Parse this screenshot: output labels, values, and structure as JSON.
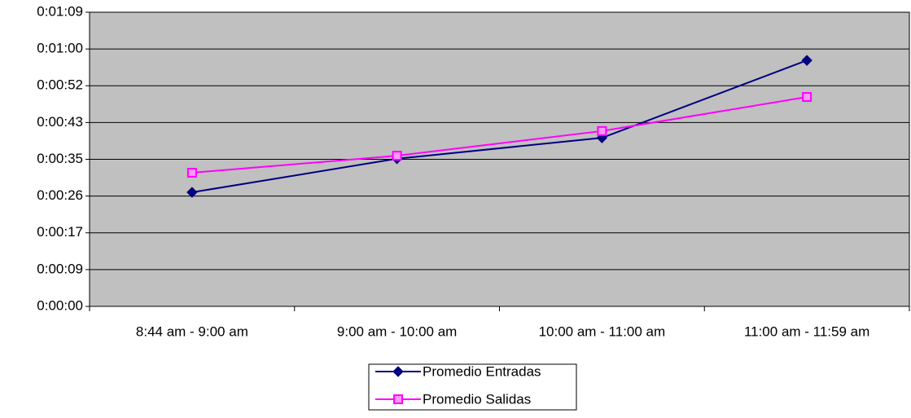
{
  "chart_data": {
    "type": "line",
    "categories": [
      "8:44 am - 9:00 am",
      "9:00 am - 10:00 am",
      "10:00 am - 11:00 am",
      "11:00 am - 11:59 am"
    ],
    "series": [
      {
        "name": "Promedio Entradas",
        "color": "#000080",
        "marker": "diamond",
        "values": [
          26.8,
          34.7,
          39.6,
          57.8
        ]
      },
      {
        "name": "Promedio Salidas",
        "color": "#ff00ff",
        "marker": "square",
        "values": [
          31.4,
          35.4,
          41.2,
          49.2
        ]
      }
    ],
    "ylim": [
      0,
      69.12
    ],
    "yticks": [
      {
        "value": 0,
        "label": "0:00:00"
      },
      {
        "value": 8.64,
        "label": "0:00:09"
      },
      {
        "value": 17.28,
        "label": "0:00:17"
      },
      {
        "value": 25.92,
        "label": "0:00:26"
      },
      {
        "value": 34.56,
        "label": "0:00:35"
      },
      {
        "value": 43.2,
        "label": "0:00:43"
      },
      {
        "value": 51.84,
        "label": "0:00:52"
      },
      {
        "value": 60.48,
        "label": "0:01:00"
      },
      {
        "value": 69.12,
        "label": "0:01:09"
      }
    ],
    "grid": true,
    "legend": "bottom"
  }
}
